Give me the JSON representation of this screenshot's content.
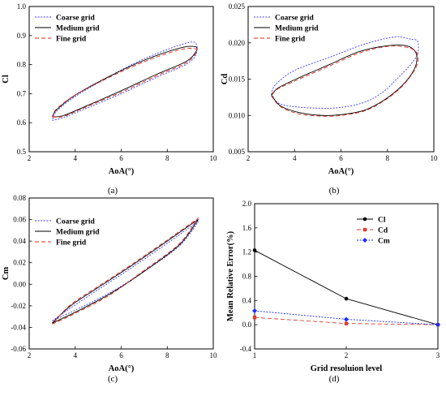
{
  "colors": {
    "coarse": "#3a3aff",
    "medium": "#000000",
    "fine": "#e0291b",
    "cl": "#000000",
    "cd": "#d8402f",
    "cm": "#1a2cff"
  },
  "chart_data": [
    {
      "type": "line",
      "caption": "(a)",
      "xlabel": "AoA(°)",
      "ylabel": "Cl",
      "xlim": [
        2,
        10
      ],
      "ylim": [
        0.5,
        1.0
      ],
      "xticks": [
        "2",
        "4",
        "6",
        "8",
        "10"
      ],
      "yticks": [
        "0.5",
        "0.6",
        "0.7",
        "0.8",
        "0.9",
        "1.0"
      ],
      "legend_position": "top-left",
      "series": [
        {
          "name": "Coarse grid",
          "style": "dotted",
          "color_key": "coarse",
          "x": [
            3.0,
            3.5,
            4.5,
            6.0,
            7.5,
            8.8,
            9.25,
            9.2,
            8.5,
            7.0,
            5.5,
            4.0,
            3.2,
            3.0
          ],
          "y": [
            0.608,
            0.618,
            0.65,
            0.7,
            0.755,
            0.8,
            0.835,
            0.876,
            0.866,
            0.82,
            0.76,
            0.69,
            0.64,
            0.608
          ]
        },
        {
          "name": "Medium grid",
          "style": "solid",
          "color_key": "medium",
          "x": [
            3.0,
            3.5,
            4.5,
            6.0,
            7.5,
            8.8,
            9.25,
            9.2,
            8.5,
            7.0,
            5.5,
            4.0,
            3.2,
            3.0
          ],
          "y": [
            0.62,
            0.625,
            0.658,
            0.71,
            0.765,
            0.81,
            0.845,
            0.862,
            0.856,
            0.815,
            0.76,
            0.695,
            0.645,
            0.62
          ]
        },
        {
          "name": "Fine grid",
          "style": "dashed",
          "color_key": "fine",
          "x": [
            3.0,
            3.5,
            4.5,
            6.0,
            7.5,
            8.8,
            9.25,
            9.2,
            8.5,
            7.0,
            5.5,
            4.0,
            3.2,
            3.0
          ],
          "y": [
            0.62,
            0.622,
            0.655,
            0.705,
            0.76,
            0.805,
            0.84,
            0.855,
            0.85,
            0.81,
            0.757,
            0.695,
            0.648,
            0.62
          ]
        }
      ]
    },
    {
      "type": "line",
      "caption": "(b)",
      "xlabel": "AoA(°)",
      "ylabel": "Cd",
      "xlim": [
        2,
        10
      ],
      "ylim": [
        0.005,
        0.025
      ],
      "xticks": [
        "2",
        "4",
        "6",
        "8",
        "10"
      ],
      "yticks": [
        "0.005",
        "0.010",
        "0.015",
        "0.020",
        "0.025"
      ],
      "legend_position": "top-left",
      "series": [
        {
          "name": "Coarse grid",
          "style": "dotted",
          "color_key": "coarse",
          "x": [
            3.0,
            3.3,
            4.0,
            5.0,
            6.0,
            7.0,
            7.8,
            8.4,
            9.0,
            9.3,
            9.3,
            9.0,
            8.3,
            7.0,
            5.5,
            4.0,
            3.2,
            3.0
          ],
          "y": [
            0.013,
            0.0117,
            0.0112,
            0.011,
            0.0111,
            0.0118,
            0.0132,
            0.015,
            0.017,
            0.0185,
            0.0202,
            0.0205,
            0.0208,
            0.0198,
            0.018,
            0.0162,
            0.0143,
            0.013
          ]
        },
        {
          "name": "Medium grid",
          "style": "solid",
          "color_key": "medium",
          "x": [
            3.0,
            3.4,
            4.2,
            5.2,
            6.0,
            7.0,
            7.8,
            8.5,
            9.0,
            9.25,
            9.2,
            8.8,
            8.0,
            6.8,
            5.5,
            4.2,
            3.3,
            3.0
          ],
          "y": [
            0.0128,
            0.0113,
            0.0104,
            0.01,
            0.0101,
            0.0107,
            0.012,
            0.0137,
            0.0155,
            0.0172,
            0.0188,
            0.0196,
            0.0196,
            0.0188,
            0.017,
            0.0152,
            0.0138,
            0.0128
          ]
        },
        {
          "name": "Fine grid",
          "style": "dashed",
          "color_key": "fine",
          "x": [
            3.0,
            3.4,
            4.2,
            5.2,
            6.0,
            7.0,
            7.8,
            8.5,
            9.0,
            9.3,
            9.25,
            8.8,
            8.0,
            6.8,
            5.5,
            4.2,
            3.3,
            3.0
          ],
          "y": [
            0.0127,
            0.0112,
            0.0102,
            0.0099,
            0.01,
            0.0106,
            0.0119,
            0.0136,
            0.0154,
            0.0172,
            0.0187,
            0.0194,
            0.0195,
            0.0186,
            0.0168,
            0.015,
            0.0137,
            0.0127
          ]
        }
      ]
    },
    {
      "type": "line",
      "caption": "(c)",
      "xlabel": "AoA(°)",
      "ylabel": "Cm",
      "xlim": [
        2,
        10
      ],
      "ylim": [
        -0.06,
        0.08
      ],
      "xticks": [
        "2",
        "4",
        "6",
        "8",
        "10"
      ],
      "yticks": [
        "-0.06",
        "-0.04",
        "-0.02",
        "0.00",
        "0.02",
        "0.04",
        "0.06",
        "0.08"
      ],
      "legend_position": "top-left",
      "series": [
        {
          "name": "Coarse grid",
          "style": "dotted",
          "color_key": "coarse",
          "x": [
            3.0,
            4.0,
            5.5,
            7.0,
            8.5,
            9.25,
            9.2,
            8.0,
            6.5,
            5.0,
            3.8,
            3.0
          ],
          "y": [
            -0.034,
            -0.024,
            -0.008,
            0.012,
            0.035,
            0.055,
            0.056,
            0.038,
            0.016,
            -0.005,
            -0.022,
            -0.034
          ]
        },
        {
          "name": "Medium grid",
          "style": "solid",
          "color_key": "medium",
          "x": [
            3.0,
            4.0,
            5.5,
            7.0,
            8.5,
            9.25,
            9.2,
            8.0,
            6.5,
            5.0,
            3.8,
            3.0
          ],
          "y": [
            -0.036,
            -0.026,
            -0.009,
            0.012,
            0.036,
            0.057,
            0.058,
            0.04,
            0.018,
            -0.003,
            -0.02,
            -0.036
          ]
        },
        {
          "name": "Fine grid",
          "style": "dashed",
          "color_key": "fine",
          "x": [
            3.0,
            4.0,
            5.5,
            7.0,
            8.5,
            9.25,
            9.2,
            8.0,
            6.5,
            5.0,
            3.8,
            3.0
          ],
          "y": [
            -0.037,
            -0.027,
            -0.01,
            0.013,
            0.037,
            0.059,
            0.059,
            0.041,
            0.019,
            -0.002,
            -0.019,
            -0.037
          ]
        }
      ]
    },
    {
      "type": "line",
      "caption": "(d)",
      "xlabel": "Grid resoluion level",
      "ylabel": "Mean Relative Error(%)",
      "xlim": [
        1,
        3
      ],
      "ylim": [
        -0.4,
        2.0
      ],
      "xticks": [
        "1",
        "2",
        "3"
      ],
      "yticks": [
        "-0.4",
        "0.0",
        "0.4",
        "0.8",
        "1.2",
        "1.6",
        "2.0"
      ],
      "legend_position": "top-right",
      "categories": [
        1,
        2,
        3
      ],
      "series": [
        {
          "name": "Cl",
          "style": "solid",
          "marker": "circle",
          "color_key": "cl",
          "values": [
            1.23,
            0.43,
            0.0
          ]
        },
        {
          "name": "Cd",
          "style": "dashed",
          "marker": "square",
          "color_key": "cd",
          "values": [
            0.12,
            0.02,
            0.0
          ]
        },
        {
          "name": "Cm",
          "style": "dotted",
          "marker": "diamond",
          "color_key": "cm",
          "values": [
            0.23,
            0.09,
            0.0
          ]
        }
      ]
    }
  ]
}
